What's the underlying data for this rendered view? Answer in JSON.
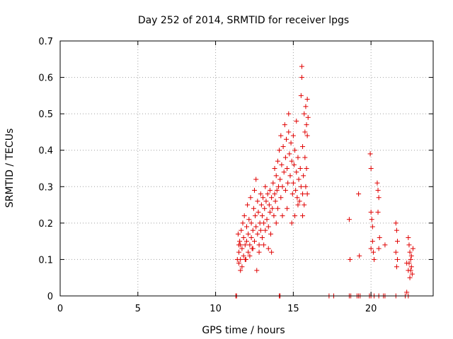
{
  "chart_data": {
    "type": "scatter",
    "title": "Day 252 of 2014, SRMTID for receiver lpgs",
    "xlabel": "GPS time / hours",
    "ylabel": "SRMTID / TECUs",
    "xlim": [
      0,
      24
    ],
    "ylim": [
      0,
      0.7
    ],
    "x_ticks": [
      0,
      5,
      10,
      15,
      20
    ],
    "y_ticks": [
      0,
      0.1,
      0.2,
      0.3,
      0.4,
      0.5,
      0.6,
      0.7
    ],
    "x_tick_labels": [
      "0",
      "5",
      "10",
      "15",
      "20"
    ],
    "y_tick_labels": [
      "0",
      "0.1",
      "0.2",
      "0.3",
      "0.4",
      "0.5",
      "0.6",
      "0.7"
    ],
    "grid": true,
    "marker": "+",
    "color": "#e00000",
    "series": [
      {
        "name": "SRMTID",
        "points": [
          [
            11.3,
            0.0
          ],
          [
            11.35,
            0.0
          ],
          [
            14.1,
            0.0
          ],
          [
            14.15,
            0.0
          ],
          [
            17.3,
            0.0
          ],
          [
            17.6,
            0.0
          ],
          [
            18.6,
            0.0
          ],
          [
            18.7,
            0.0
          ],
          [
            19.1,
            0.0
          ],
          [
            19.2,
            0.0
          ],
          [
            19.3,
            0.0
          ],
          [
            19.9,
            0.0
          ],
          [
            20.0,
            0.0
          ],
          [
            20.2,
            0.0
          ],
          [
            20.5,
            0.0
          ],
          [
            20.8,
            0.0
          ],
          [
            20.9,
            0.0
          ],
          [
            21.6,
            0.0
          ],
          [
            22.2,
            0.0
          ],
          [
            22.4,
            0.0
          ],
          [
            22.3,
            0.01
          ],
          [
            11.45,
            0.17
          ],
          [
            11.5,
            0.12
          ],
          [
            11.5,
            0.09
          ],
          [
            11.55,
            0.15
          ],
          [
            11.6,
            0.1
          ],
          [
            11.6,
            0.14
          ],
          [
            11.65,
            0.18
          ],
          [
            11.7,
            0.08
          ],
          [
            11.7,
            0.13
          ],
          [
            11.75,
            0.2
          ],
          [
            11.8,
            0.11
          ],
          [
            11.8,
            0.16
          ],
          [
            11.85,
            0.22
          ],
          [
            11.9,
            0.14
          ],
          [
            11.95,
            0.1
          ],
          [
            12.0,
            0.15
          ],
          [
            12.0,
            0.19
          ],
          [
            12.05,
            0.25
          ],
          [
            12.1,
            0.12
          ],
          [
            12.1,
            0.17
          ],
          [
            12.15,
            0.21
          ],
          [
            12.2,
            0.14
          ],
          [
            12.25,
            0.27
          ],
          [
            12.3,
            0.16
          ],
          [
            12.3,
            0.2
          ],
          [
            12.35,
            0.13
          ],
          [
            12.4,
            0.18
          ],
          [
            12.45,
            0.24
          ],
          [
            12.5,
            0.29
          ],
          [
            12.5,
            0.15
          ],
          [
            12.55,
            0.22
          ],
          [
            12.6,
            0.19
          ],
          [
            12.6,
            0.32
          ],
          [
            12.65,
            0.07
          ],
          [
            12.7,
            0.17
          ],
          [
            12.7,
            0.26
          ],
          [
            12.75,
            0.23
          ],
          [
            12.8,
            0.14
          ],
          [
            12.85,
            0.2
          ],
          [
            12.9,
            0.28
          ],
          [
            12.9,
            0.18
          ],
          [
            12.95,
            0.25
          ],
          [
            13.0,
            0.22
          ],
          [
            13.0,
            0.16
          ],
          [
            13.05,
            0.27
          ],
          [
            13.1,
            0.2
          ],
          [
            13.15,
            0.24
          ],
          [
            13.2,
            0.3
          ],
          [
            13.2,
            0.18
          ],
          [
            13.25,
            0.26
          ],
          [
            13.3,
            0.21
          ],
          [
            13.35,
            0.28
          ],
          [
            13.4,
            0.19
          ],
          [
            13.45,
            0.25
          ],
          [
            13.5,
            0.23
          ],
          [
            13.5,
            0.29
          ],
          [
            13.55,
            0.17
          ],
          [
            13.6,
            0.27
          ],
          [
            13.65,
            0.24
          ],
          [
            13.7,
            0.31
          ],
          [
            13.75,
            0.22
          ],
          [
            13.8,
            0.28
          ],
          [
            13.8,
            0.35
          ],
          [
            13.85,
            0.26
          ],
          [
            13.9,
            0.33
          ],
          [
            13.95,
            0.29
          ],
          [
            14.0,
            0.37
          ],
          [
            14.0,
            0.24
          ],
          [
            14.05,
            0.3
          ],
          [
            14.1,
            0.4
          ],
          [
            14.15,
            0.32
          ],
          [
            14.2,
            0.27
          ],
          [
            14.2,
            0.44
          ],
          [
            14.25,
            0.36
          ],
          [
            14.3,
            0.3
          ],
          [
            14.35,
            0.41
          ],
          [
            14.4,
            0.34
          ],
          [
            14.45,
            0.47
          ],
          [
            14.5,
            0.38
          ],
          [
            14.5,
            0.29
          ],
          [
            14.55,
            0.43
          ],
          [
            14.6,
            0.35
          ],
          [
            14.65,
            0.31
          ],
          [
            14.7,
            0.45
          ],
          [
            14.7,
            0.5
          ],
          [
            14.75,
            0.39
          ],
          [
            14.8,
            0.33
          ],
          [
            14.85,
            0.42
          ],
          [
            14.9,
            0.37
          ],
          [
            14.95,
            0.28
          ],
          [
            15.0,
            0.44
          ],
          [
            15.0,
            0.31
          ],
          [
            15.05,
            0.36
          ],
          [
            15.1,
            0.4
          ],
          [
            15.15,
            0.29
          ],
          [
            15.2,
            0.34
          ],
          [
            15.2,
            0.48
          ],
          [
            15.25,
            0.27
          ],
          [
            15.3,
            0.38
          ],
          [
            15.35,
            0.32
          ],
          [
            15.4,
            0.26
          ],
          [
            15.45,
            0.35
          ],
          [
            15.5,
            0.3
          ],
          [
            15.5,
            0.55
          ],
          [
            15.55,
            0.63
          ],
          [
            15.55,
            0.6
          ],
          [
            15.6,
            0.28
          ],
          [
            15.6,
            0.41
          ],
          [
            15.65,
            0.33
          ],
          [
            15.7,
            0.5
          ],
          [
            15.7,
            0.25
          ],
          [
            15.75,
            0.45
          ],
          [
            15.8,
            0.3
          ],
          [
            15.8,
            0.52
          ],
          [
            15.85,
            0.47
          ],
          [
            15.9,
            0.54
          ],
          [
            15.9,
            0.44
          ],
          [
            15.95,
            0.49
          ],
          [
            15.85,
            0.35
          ],
          [
            15.75,
            0.38
          ],
          [
            11.4,
            0.1
          ],
          [
            11.5,
            0.14
          ],
          [
            11.6,
            0.07
          ],
          [
            11.9,
            0.1
          ],
          [
            12.2,
            0.11
          ],
          [
            12.4,
            0.13
          ],
          [
            12.8,
            0.12
          ],
          [
            13.1,
            0.14
          ],
          [
            13.4,
            0.13
          ],
          [
            13.6,
            0.12
          ],
          [
            13.9,
            0.2
          ],
          [
            14.3,
            0.22
          ],
          [
            14.6,
            0.24
          ],
          [
            14.9,
            0.2
          ],
          [
            15.1,
            0.22
          ],
          [
            15.3,
            0.25
          ],
          [
            15.6,
            0.22
          ],
          [
            15.9,
            0.28
          ],
          [
            18.6,
            0.21
          ],
          [
            18.65,
            0.1
          ],
          [
            19.2,
            0.28
          ],
          [
            19.25,
            0.11
          ],
          [
            19.95,
            0.39
          ],
          [
            20.0,
            0.35
          ],
          [
            20.0,
            0.23
          ],
          [
            20.05,
            0.21
          ],
          [
            20.1,
            0.19
          ],
          [
            20.1,
            0.15
          ],
          [
            20.15,
            0.12
          ],
          [
            20.0,
            0.13
          ],
          [
            20.2,
            0.1
          ],
          [
            20.4,
            0.31
          ],
          [
            20.45,
            0.29
          ],
          [
            20.5,
            0.27
          ],
          [
            20.45,
            0.23
          ],
          [
            20.55,
            0.16
          ],
          [
            20.5,
            0.13
          ],
          [
            20.9,
            0.14
          ],
          [
            21.6,
            0.2
          ],
          [
            21.65,
            0.18
          ],
          [
            21.7,
            0.15
          ],
          [
            21.6,
            0.12
          ],
          [
            21.7,
            0.1
          ],
          [
            21.65,
            0.08
          ],
          [
            22.3,
            0.09
          ],
          [
            22.4,
            0.16
          ],
          [
            22.45,
            0.14
          ],
          [
            22.5,
            0.12
          ],
          [
            22.55,
            0.1
          ],
          [
            22.6,
            0.08
          ],
          [
            22.65,
            0.06
          ],
          [
            22.5,
            0.05
          ],
          [
            22.55,
            0.07
          ],
          [
            22.6,
            0.11
          ],
          [
            22.7,
            0.13
          ],
          [
            22.4,
            0.07
          ],
          [
            22.45,
            0.09
          ]
        ]
      }
    ]
  }
}
